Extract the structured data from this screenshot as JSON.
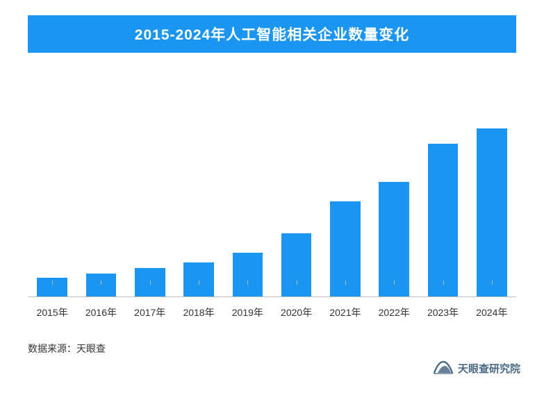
{
  "title": {
    "text": "2015-2024年人工智能相关企业数量变化",
    "color": "#ffffff",
    "background": "#1b95f2",
    "fontsize": 21
  },
  "chart": {
    "type": "bar",
    "categories": [
      "2015年",
      "2016年",
      "2017年",
      "2018年",
      "2019年",
      "2020年",
      "2021年",
      "2022年",
      "2023年",
      "2024年"
    ],
    "values": [
      10,
      12,
      15,
      18,
      23,
      33,
      50,
      60,
      80,
      88
    ],
    "ylim": [
      0,
      100
    ],
    "bar_color": "#1b95f2",
    "bar_width": 0.62,
    "axis_color": "#bfbfbf",
    "background_color": "#ffffff",
    "xlabel_fontsize": 14,
    "xlabel_color": "#333333"
  },
  "source": {
    "label": "数据来源：",
    "value": "天眼查",
    "fontsize": 14,
    "color": "#333333"
  },
  "logo": {
    "text": "天眼查研究院",
    "color": "#4a6a85",
    "icon_name": "tianyancha-logo-icon"
  }
}
